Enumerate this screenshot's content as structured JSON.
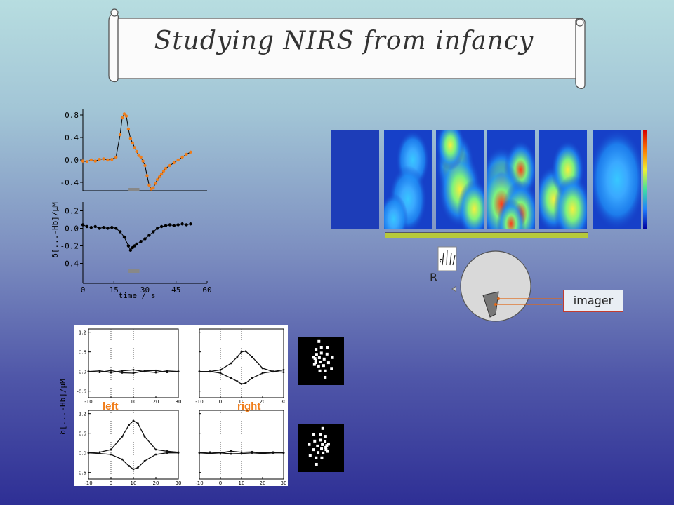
{
  "slide": {
    "title": "Studying NIRS from infancy",
    "imager_label": "imager",
    "head_side_label": "R",
    "colors": {
      "accent_orange": "#f07d1a",
      "box_border": "#c23b2f",
      "bar_green": "#b7c93a"
    }
  },
  "chart_data": [
    {
      "type": "line",
      "panel": "top-left upper",
      "y_ticks": [
        "0.8",
        "0.4",
        "0.0",
        "-0.4"
      ],
      "ylim": [
        -0.55,
        0.9
      ],
      "xlim": [
        0,
        60
      ],
      "series": [
        {
          "color": "#f07d1a",
          "x": [
            0,
            2,
            4,
            6,
            8,
            10,
            12,
            14,
            16,
            18,
            19,
            20,
            21,
            22,
            23,
            24,
            25,
            26,
            27,
            28,
            29,
            30,
            31,
            32,
            33,
            34,
            35,
            36,
            37,
            38,
            39,
            40,
            42,
            44,
            46,
            48,
            50,
            52
          ],
          "y": [
            -0.02,
            -0.03,
            0.0,
            -0.02,
            0.01,
            0.02,
            0.0,
            0.01,
            0.05,
            0.45,
            0.75,
            0.82,
            0.78,
            0.55,
            0.38,
            0.3,
            0.22,
            0.15,
            0.08,
            0.05,
            -0.02,
            -0.1,
            -0.28,
            -0.45,
            -0.52,
            -0.5,
            -0.42,
            -0.35,
            -0.3,
            -0.25,
            -0.2,
            -0.15,
            -0.1,
            -0.05,
            0.0,
            0.05,
            0.1,
            0.14
          ]
        }
      ],
      "stimulus_bar": [
        18,
        30
      ]
    },
    {
      "type": "line",
      "panel": "top-left lower",
      "y_ticks": [
        "0.2",
        "0.0",
        "-0.2",
        "-0.4"
      ],
      "x_ticks": [
        "0",
        "15",
        "30",
        "45",
        "60"
      ],
      "xlabel": "time / s",
      "ylabel": "δ[...-Hb]/μM",
      "ylim": [
        -0.5,
        0.3
      ],
      "xlim": [
        0,
        60
      ],
      "series": [
        {
          "color": "#000000",
          "x": [
            0,
            2,
            4,
            6,
            8,
            10,
            12,
            14,
            16,
            18,
            20,
            22,
            23,
            24,
            25,
            26,
            28,
            30,
            32,
            34,
            36,
            38,
            40,
            42,
            44,
            46,
            48,
            50,
            52
          ],
          "y": [
            0.04,
            0.02,
            0.01,
            0.02,
            0.0,
            0.01,
            0.0,
            0.01,
            0.0,
            -0.04,
            -0.1,
            -0.2,
            -0.25,
            -0.22,
            -0.2,
            -0.18,
            -0.15,
            -0.12,
            -0.08,
            -0.04,
            0.0,
            0.02,
            0.03,
            0.04,
            0.03,
            0.04,
            0.05,
            0.04,
            0.05
          ]
        }
      ],
      "stimulus_bar": [
        18,
        30
      ]
    },
    {
      "type": "line",
      "panel": "bottom grid",
      "ylabel": "δ[...-Hb]/μM",
      "labels": [
        "left",
        "right"
      ],
      "y_ticks": [
        "1.2",
        "0.6",
        "0.0",
        "-0.6"
      ],
      "x_ticks": [
        "-10",
        "0",
        "10",
        "20",
        "30"
      ],
      "xlim": [
        -10,
        30
      ],
      "ylim": [
        -0.8,
        1.3
      ],
      "subplots": [
        {
          "position": "top-left",
          "series": [
            {
              "x": [
                -10,
                -5,
                0,
                5,
                10,
                15,
                20,
                25,
                30
              ],
              "y": [
                0.0,
                0.02,
                -0.03,
                0.02,
                0.05,
                0.0,
                -0.03,
                0.02,
                0.0
              ]
            },
            {
              "x": [
                -10,
                -5,
                0,
                5,
                10,
                15,
                20,
                25,
                30
              ],
              "y": [
                0.0,
                -0.02,
                0.03,
                -0.04,
                -0.05,
                0.02,
                0.03,
                -0.02,
                0.0
              ]
            }
          ]
        },
        {
          "position": "top-right",
          "series": [
            {
              "x": [
                -10,
                -5,
                0,
                5,
                8,
                10,
                12,
                15,
                20,
                25,
                30
              ],
              "y": [
                0.0,
                0.0,
                0.05,
                0.25,
                0.45,
                0.6,
                0.62,
                0.45,
                0.1,
                0.0,
                0.05
              ]
            },
            {
              "x": [
                -10,
                -5,
                0,
                5,
                8,
                10,
                12,
                15,
                20,
                25,
                30
              ],
              "y": [
                0.0,
                0.0,
                -0.05,
                -0.2,
                -0.3,
                -0.38,
                -0.35,
                -0.2,
                -0.05,
                0.0,
                -0.02
              ]
            }
          ]
        },
        {
          "position": "bottom-left",
          "series": [
            {
              "x": [
                -10,
                -5,
                0,
                5,
                8,
                10,
                12,
                15,
                20,
                25,
                30
              ],
              "y": [
                0.0,
                0.02,
                0.1,
                0.5,
                0.85,
                0.98,
                0.9,
                0.5,
                0.1,
                0.05,
                0.02
              ]
            },
            {
              "x": [
                -10,
                -5,
                0,
                5,
                8,
                10,
                12,
                15,
                20,
                25,
                30
              ],
              "y": [
                0.0,
                -0.02,
                -0.05,
                -0.2,
                -0.4,
                -0.5,
                -0.45,
                -0.25,
                -0.05,
                0.0,
                0.0
              ]
            }
          ]
        },
        {
          "position": "bottom-right",
          "series": [
            {
              "x": [
                -10,
                -5,
                0,
                5,
                10,
                15,
                20,
                25,
                30
              ],
              "y": [
                0.0,
                0.02,
                0.0,
                0.05,
                0.02,
                0.03,
                0.0,
                0.02,
                0.0
              ]
            },
            {
              "x": [
                -10,
                -5,
                0,
                5,
                10,
                15,
                20,
                25,
                30
              ],
              "y": [
                0.0,
                -0.02,
                0.0,
                -0.03,
                -0.02,
                0.0,
                -0.02,
                0.0,
                0.0
              ]
            }
          ]
        }
      ]
    },
    {
      "type": "heatmap",
      "panel": "imaging frames",
      "frames": [
        {
          "intensity": 0.05
        },
        {
          "intensity": 0.3
        },
        {
          "intensity": 0.5
        },
        {
          "intensity": 0.8
        },
        {
          "intensity": 0.55
        },
        {
          "intensity": 0.1
        }
      ]
    }
  ]
}
